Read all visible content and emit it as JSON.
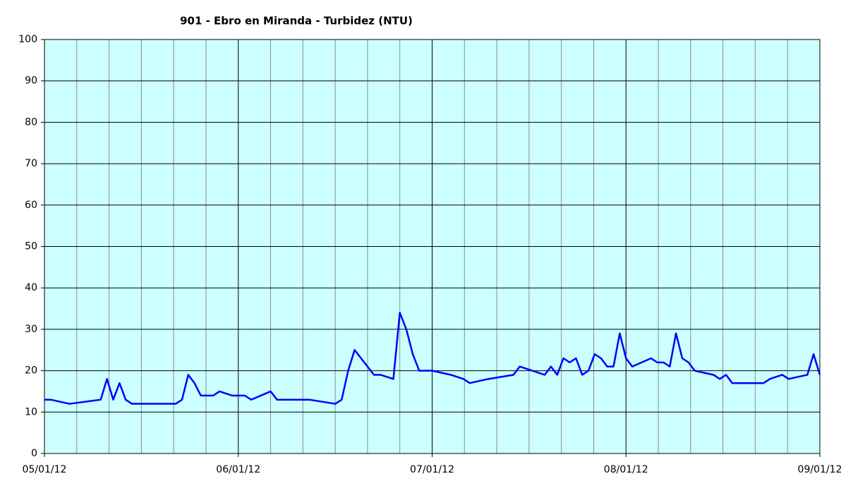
{
  "chart_data": {
    "type": "line",
    "title": "901 - Ebro en Miranda - Turbidez (NTU)",
    "x": [
      "05/01/12",
      "05/02/12",
      "05/05/12",
      "05/10/12",
      "05/11/12",
      "05/12/12",
      "05/13/12",
      "05/14/12",
      "05/15/12",
      "05/22/12",
      "05/23/12",
      "05/24/12",
      "05/25/12",
      "05/26/12",
      "05/28/12",
      "05/29/12",
      "05/31/12",
      "06/02/12",
      "06/03/12",
      "06/06/12",
      "06/07/12",
      "06/12/12",
      "06/16/12",
      "06/17/12",
      "06/18/12",
      "06/19/12",
      "06/20/12",
      "06/21/12",
      "06/22/12",
      "06/23/12",
      "06/25/12",
      "06/26/12",
      "06/27/12",
      "06/28/12",
      "06/29/12",
      "07/01/12",
      "07/04/12",
      "07/06/12",
      "07/07/12",
      "07/10/12",
      "07/14/12",
      "07/15/12",
      "07/17/12",
      "07/19/12",
      "07/20/12",
      "07/21/12",
      "07/22/12",
      "07/23/12",
      "07/24/12",
      "07/25/12",
      "07/26/12",
      "07/27/12",
      "07/28/12",
      "07/29/12",
      "07/30/12",
      "07/31/12",
      "08/01/12",
      "08/02/12",
      "08/05/12",
      "08/06/12",
      "08/07/12",
      "08/08/12",
      "08/09/12",
      "08/10/12",
      "08/11/12",
      "08/12/12",
      "08/15/12",
      "08/16/12",
      "08/17/12",
      "08/18/12",
      "08/23/12",
      "08/24/12",
      "08/26/12",
      "08/27/12",
      "08/30/12",
      "08/31/12",
      "09/01/12"
    ],
    "series": [
      {
        "name": "Turbidez",
        "color": "#0000ff",
        "values": [
          13,
          13,
          12,
          13,
          18,
          13,
          17,
          13,
          12,
          12,
          13,
          19,
          17,
          14,
          14,
          15,
          14,
          14,
          13,
          15,
          13,
          13,
          12,
          13,
          20,
          25,
          23,
          21,
          19,
          19,
          18,
          34,
          30,
          24,
          20,
          20,
          19,
          18,
          17,
          18,
          19,
          21,
          20,
          19,
          21,
          19,
          23,
          22,
          23,
          19,
          20,
          24,
          23,
          21,
          21,
          29,
          23,
          21,
          23,
          22,
          22,
          21,
          29,
          23,
          22,
          20,
          19,
          18,
          19,
          17,
          17,
          18,
          19,
          18,
          19,
          24,
          19
        ]
      }
    ],
    "xticks": [
      "05/01/12",
      "06/01/12",
      "07/01/12",
      "08/01/12",
      "09/01/12"
    ],
    "ylim": [
      0,
      100
    ],
    "yticks": [
      0,
      10,
      20,
      30,
      40,
      50,
      60,
      70,
      80,
      90,
      100
    ],
    "grid": true
  }
}
